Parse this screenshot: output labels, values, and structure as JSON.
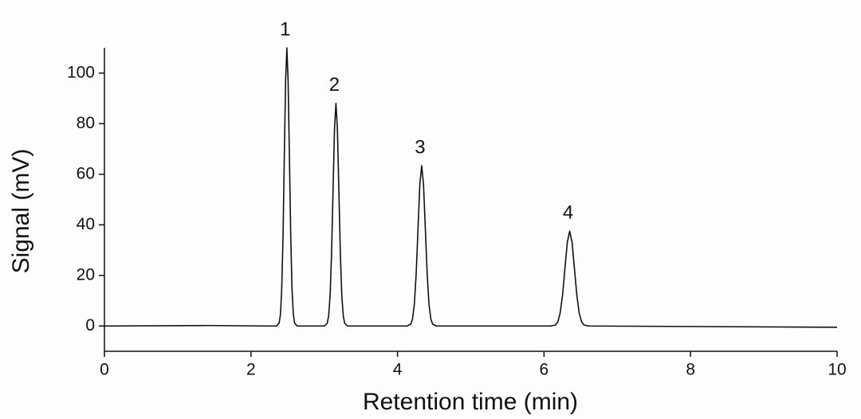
{
  "chart_data": {
    "type": "line",
    "xlabel": "Retention time (min)",
    "ylabel": "Signal (mV)",
    "xlim": [
      0,
      10
    ],
    "ylim": [
      -10,
      110
    ],
    "xticks": [
      0,
      2,
      4,
      6,
      8,
      10
    ],
    "yticks": [
      0,
      20,
      40,
      60,
      80,
      100
    ],
    "color": "#111111",
    "x": [
      0,
      1.4,
      2.2,
      2.35,
      2.385,
      2.403,
      2.42,
      2.438,
      2.455,
      2.473,
      2.49,
      2.507,
      2.525,
      2.543,
      2.56,
      2.578,
      2.595,
      2.63,
      3.0,
      3.04,
      3.06,
      3.08,
      3.1,
      3.12,
      3.14,
      3.16,
      3.18,
      3.2,
      3.22,
      3.24,
      3.26,
      3.28,
      3.32,
      4.13,
      4.18,
      4.205,
      4.23,
      4.255,
      4.28,
      4.305,
      4.33,
      4.355,
      4.38,
      4.405,
      4.43,
      4.455,
      4.48,
      4.53,
      6.09,
      6.155,
      6.188,
      6.22,
      6.253,
      6.285,
      6.318,
      6.35,
      6.383,
      6.415,
      6.448,
      6.48,
      6.513,
      6.545,
      6.61,
      8,
      10
    ],
    "values": [
      0,
      0.2,
      0,
      0,
      1.2,
      4.8,
      14.9,
      35.7,
      66.7,
      97.1,
      110,
      97.1,
      66.7,
      35.7,
      14.9,
      4.8,
      1.2,
      0,
      0,
      1.0,
      3.9,
      11.9,
      28.6,
      53.4,
      77.7,
      88,
      77.7,
      53.4,
      28.6,
      11.9,
      3.9,
      1.0,
      0,
      0,
      0.7,
      2.8,
      8.6,
      20.6,
      38.5,
      56,
      63.4,
      56,
      38.5,
      20.6,
      8.6,
      2.8,
      0.7,
      0,
      0,
      0.4,
      1.6,
      5.1,
      12.2,
      22.7,
      33.1,
      37.5,
      33.1,
      22.7,
      12.2,
      5.1,
      1.6,
      0.4,
      0,
      -0.2,
      -0.5
    ],
    "annotations": [
      {
        "text": "1",
        "x": 2.49,
        "y": 110
      },
      {
        "text": "2",
        "x": 3.16,
        "y": 88
      },
      {
        "text": "3",
        "x": 4.33,
        "y": 63.4
      },
      {
        "text": "4",
        "x": 6.35,
        "y": 37.5
      }
    ]
  }
}
